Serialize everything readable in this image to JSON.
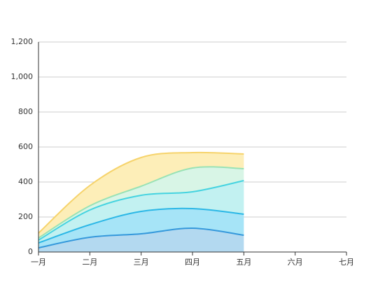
{
  "chart_data": {
    "type": "stacked-area",
    "categories": [
      "一月",
      "二月",
      "三月",
      "四月",
      "五月",
      "六月",
      "七月"
    ],
    "series": [
      {
        "color": "#3498db",
        "fill": "#b3d9f0",
        "values": [
          24,
          84,
          104,
          136,
          96,
          null,
          null
        ]
      },
      {
        "color": "#2bb7e6",
        "fill": "#a6e4f7",
        "values": [
          28,
          72,
          128,
          112,
          120,
          null,
          null
        ]
      },
      {
        "color": "#45d3e0",
        "fill": "#c2f1f1",
        "values": [
          16,
          84,
          92,
          96,
          192,
          null,
          null
        ]
      },
      {
        "color": "#98e2b5",
        "fill": "#d8f5e6",
        "values": [
          12,
          24,
          52,
          136,
          68,
          null,
          null
        ]
      },
      {
        "color": "#f6d36b",
        "fill": "#fdeeb8",
        "values": [
          28,
          116,
          164,
          88,
          84,
          null,
          null
        ]
      }
    ],
    "ylim": [
      0,
      1200
    ],
    "yticks": [
      0,
      200,
      400,
      600,
      800,
      {
        "value": 1000,
        "label": "1,000"
      },
      {
        "value": 1200,
        "label": "1,200"
      }
    ],
    "grid": true
  }
}
